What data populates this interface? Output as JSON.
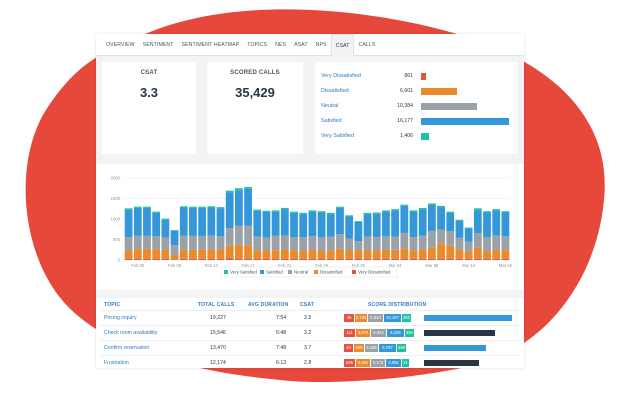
{
  "tabs": [
    {
      "label": "OVERVIEW"
    },
    {
      "label": "SENTIMENT"
    },
    {
      "label": "SENTIMENT HEATMAP"
    },
    {
      "label": "TOPICS"
    },
    {
      "label": "NES"
    },
    {
      "label": "ASAT"
    },
    {
      "label": "NPS"
    },
    {
      "label": "CSAT",
      "active": true
    },
    {
      "label": "CALLS"
    }
  ],
  "kpis": {
    "csat": {
      "title": "CSAT",
      "value": "3.3"
    },
    "scored_calls": {
      "title": "SCORED CALLS",
      "value": "35,429"
    }
  },
  "distribution": [
    {
      "label": "Very Dissatisfied",
      "count": "861",
      "value": 861,
      "color": "#e8503f"
    },
    {
      "label": "Dissatisfied",
      "count": "6,601",
      "value": 6601,
      "color": "#e98a2c"
    },
    {
      "label": "Neutral",
      "count": "10,384",
      "value": 10384,
      "color": "#9aa1a8"
    },
    {
      "label": "Satisfied",
      "count": "16,177",
      "value": 16177,
      "color": "#3497d9"
    },
    {
      "label": "Very Satisfied",
      "count": "1,406",
      "value": 1406,
      "color": "#1fc2a0"
    }
  ],
  "colors": {
    "very_dissatisfied": "#e8503f",
    "dissatisfied": "#e98a2c",
    "neutral": "#9aa1a8",
    "satisfied": "#3497d9",
    "very_satisfied": "#1fc2a0",
    "accent": "#2f7ac0",
    "blob": "#e6493b"
  },
  "chart_data": {
    "type": "bar",
    "stacked": true,
    "ylim": [
      0,
      2000
    ],
    "yticks": [
      "2000",
      "1500",
      "1000",
      "500",
      "0"
    ],
    "ytick_values": [
      2000,
      1500,
      1000,
      500,
      0
    ],
    "xtick_labels": [
      "Feb 05",
      "Feb 09",
      "Feb 13",
      "Feb 17",
      "Feb 21",
      "Feb 25",
      "Feb 29",
      "Mar 04",
      "Mar 08",
      "Mar 12",
      "Mar 16"
    ],
    "xtick_positions": [
      1,
      5,
      9,
      13,
      17,
      21,
      25,
      29,
      33,
      37,
      41
    ],
    "legend": [
      "Very Satisfied",
      "Satisfied",
      "Neutral",
      "Dissatisfied",
      "Very Dissatisfied"
    ],
    "legend_position": "bottom",
    "series": [
      {
        "name": "Very Dissatisfied",
        "values": [
          30,
          30,
          30,
          30,
          30,
          10,
          30,
          30,
          30,
          30,
          30,
          40,
          30,
          30,
          30,
          30,
          30,
          30,
          30,
          30,
          30,
          30,
          30,
          30,
          30,
          30,
          30,
          30,
          30,
          30,
          30,
          30,
          30,
          30,
          30,
          30,
          30,
          30,
          30,
          30,
          30,
          30
        ]
      },
      {
        "name": "Dissatisfied",
        "values": [
          200,
          230,
          240,
          230,
          220,
          100,
          220,
          220,
          220,
          230,
          230,
          320,
          350,
          330,
          210,
          200,
          210,
          230,
          210,
          210,
          220,
          200,
          210,
          240,
          200,
          200,
          220,
          210,
          220,
          220,
          260,
          210,
          220,
          270,
          380,
          320,
          230,
          180,
          280,
          180,
          220,
          210
        ]
      },
      {
        "name": "Neutral",
        "values": [
          330,
          330,
          320,
          320,
          300,
          250,
          340,
          340,
          330,
          340,
          320,
          420,
          460,
          480,
          330,
          320,
          350,
          340,
          320,
          320,
          330,
          330,
          330,
          360,
          290,
          230,
          320,
          320,
          330,
          320,
          370,
          320,
          340,
          410,
          330,
          350,
          280,
          240,
          340,
          350,
          350,
          340
        ]
      },
      {
        "name": "Satisfied",
        "values": [
          660,
          680,
          680,
          570,
          430,
          350,
          690,
          680,
          690,
          680,
          680,
          870,
          860,
          900,
          630,
          620,
          590,
          640,
          590,
          560,
          600,
          600,
          550,
          640,
          550,
          470,
          550,
          570,
          600,
          640,
          660,
          620,
          650,
          640,
          550,
          450,
          420,
          320,
          560,
          600,
          610,
          580
        ]
      },
      {
        "name": "Very Satisfied",
        "values": [
          40,
          30,
          30,
          30,
          30,
          20,
          30,
          30,
          30,
          30,
          30,
          40,
          50,
          40,
          30,
          30,
          30,
          30,
          30,
          30,
          30,
          30,
          30,
          30,
          20,
          20,
          30,
          30,
          30,
          30,
          30,
          30,
          30,
          30,
          30,
          30,
          20,
          20,
          50,
          30,
          30,
          30
        ]
      }
    ]
  },
  "table": {
    "headers": {
      "topic": "TOPIC",
      "total_calls": "TOTAL CALLS",
      "avg_duration": "AVG DURATION",
      "csat": "CSAT",
      "score_distribution": "SCORE DISTRIBUTION"
    },
    "rows": [
      {
        "topic": "Pricing inquiry",
        "total_calls": "19,227",
        "avg_duration": "7:54",
        "csat": "3.5",
        "segments": [
          "46",
          "2,734",
          "5,843",
          "10,167",
          "382"
        ],
        "bar_color": "#3497d9",
        "bar_fraction": 1.0
      },
      {
        "topic": "Check room availability",
        "total_calls": "15,546",
        "avg_duration": "5:48",
        "csat": "3.2",
        "segments": [
          "111",
          "3,078",
          "4,844",
          "6,209",
          "384"
        ],
        "bar_color": "#2a3744",
        "bar_fraction": 0.81
      },
      {
        "topic": "Confirm reservation",
        "total_calls": "13,470",
        "avg_duration": "7:48",
        "csat": "3.7",
        "segments": [
          "40",
          "689",
          "3,458",
          "8,767",
          "396"
        ],
        "bar_color": "#3497d9",
        "bar_fraction": 0.7
      },
      {
        "topic": "Frustration",
        "total_calls": "12,174",
        "avg_duration": "6:13",
        "csat": "2.8",
        "segments": [
          "645",
          "4,461",
          "3,175",
          "3,652",
          "21"
        ],
        "bar_color": "#2a3744",
        "bar_fraction": 0.63
      }
    ]
  }
}
